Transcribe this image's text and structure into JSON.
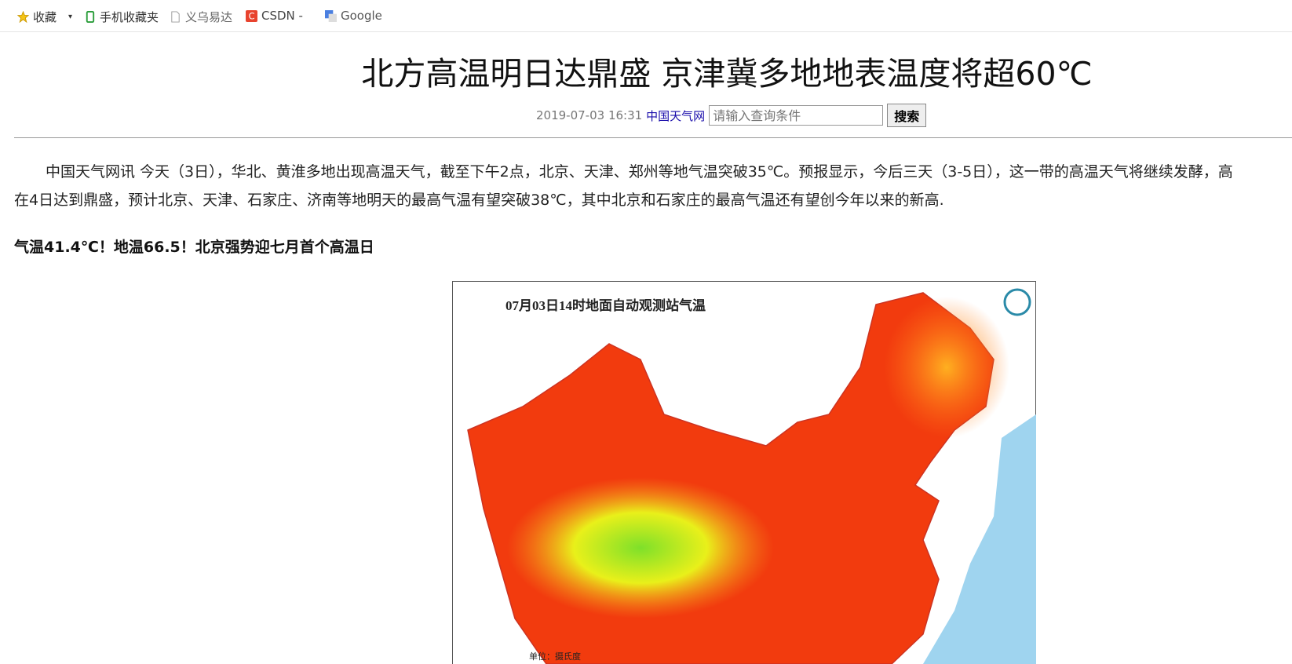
{
  "bookmarks": [
    "收藏",
    "手机收藏夹",
    "义乌易达",
    "CSDN -",
    "Google"
  ],
  "article": {
    "title": "北方高温明日达鼎盛 京津冀多地地表温度将超60℃",
    "date": "2019-07-03 16:31",
    "source": "中国天气网",
    "search_placeholder": "请输入查询条件",
    "search_button": "搜索",
    "paragraph_lines": [
      "中国天气网讯 今天（3日），华北、黄淮多地出现高温天气，截至下午2点，北京、天津、郑州等地气温突破35℃。预报显示，今后三天（3-5日），这一带的高温天气将继续发酵，高",
      "在4日达到鼎盛，预计北京、天津、石家庄、济南等地明天的最高气温有望突破38℃，其中北京和石家庄的最高气温还有望创今年以来的新高."
    ],
    "subheading": "气温41.4℃！地温66.5！北京强势迎七月首个高温日",
    "map": {
      "title": "07月03日14时地面自动观测站气温",
      "unit": "单位：摄氏度"
    }
  }
}
